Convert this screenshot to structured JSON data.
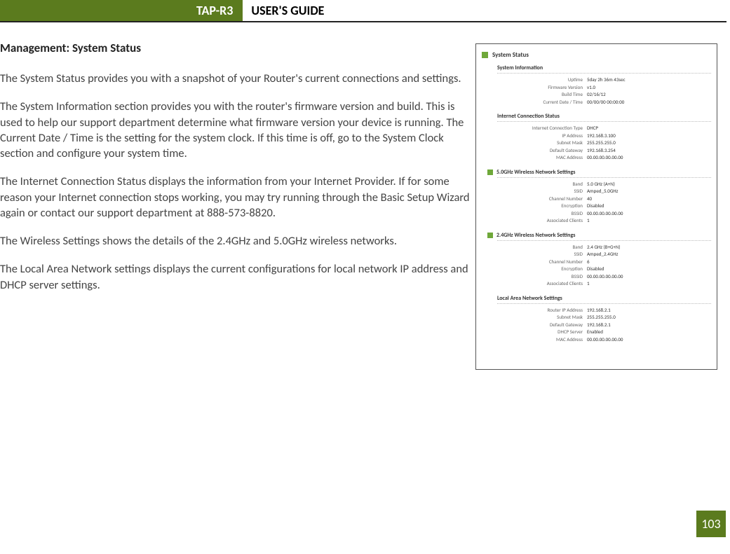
{
  "header": {
    "product": "TAP-R3",
    "title": "USER'S GUIDE"
  },
  "section_heading": "Management: System Status",
  "paragraphs": {
    "p1": "The System Status provides you with a snapshot of your Router's current connections and settings.",
    "p2": "The System Information section provides you with the router's firmware version and build.  This is used to help our support department determine what firmware version your device is running.  The Current Date / Time is the setting for the system clock.  If this time is off, go to the System Clock section and configure your system time.",
    "p3": "The Internet Connection Status displays the information from your Internet Provider.  If for some reason your Internet connection stops working, you may try running through the Basic Setup Wizard again or contact our support department at 888-573-8820.",
    "p4": "The Wireless Settings shows the details of the 2.4GHz and 5.0GHz wireless networks.",
    "p5": "The Local Area Network settings displays the current configurations for local network IP address and DHCP server settings."
  },
  "screenshot": {
    "title": "System Status",
    "sys_info": {
      "heading": "System Information",
      "uptime_l": "Uptime",
      "uptime_v": "5day 2h 36m 43sec",
      "fw_l": "Firmware Version",
      "fw_v": "v1.0",
      "bt_l": "Build Time",
      "bt_v": "02/16/12",
      "dt_l": "Current Date / Time",
      "dt_v": "00/00/00 00:00:00"
    },
    "inet": {
      "heading": "Internet Connection Status",
      "type_l": "Internet Connection Type",
      "type_v": "DHCP",
      "ip_l": "IP Address",
      "ip_v": "192.168.3.100",
      "mask_l": "Subnet Mask",
      "mask_v": "255.255.255.0",
      "gw_l": "Default Gateway",
      "gw_v": "192.168.3.254",
      "mac_l": "MAC Address",
      "mac_v": "00.00.00.00.00.00"
    },
    "w5": {
      "heading": "5.0GHz Wireless Network Settings",
      "band_l": "Band",
      "band_v": "5.0 GHz (A+N)",
      "ssid_l": "SSID",
      "ssid_v": "Amped_5.0GHz",
      "ch_l": "Channel Number",
      "ch_v": "40",
      "enc_l": "Encryption",
      "enc_v": "Disabled",
      "bssid_l": "BSSID",
      "bssid_v": "00.00.00.00.00.00",
      "cl_l": "Associated Clients",
      "cl_v": "1"
    },
    "w24": {
      "heading": "2.4GHz Wireless Network Settings",
      "band_l": "Band",
      "band_v": "2.4 GHz (B+G+N)",
      "ssid_l": "SSID",
      "ssid_v": "Amped_2.4GHz",
      "ch_l": "Channel Number",
      "ch_v": "6",
      "enc_l": "Encryption",
      "enc_v": "Disabled",
      "bssid_l": "BSSID",
      "bssid_v": "00.00.00.00.00.00",
      "cl_l": "Associated Clients",
      "cl_v": "1"
    },
    "lan": {
      "heading": "Local Area Network Settings",
      "ip_l": "Router IP Address",
      "ip_v": "192.168.2.1",
      "mask_l": "Subnet Mask",
      "mask_v": "255.255.255.0",
      "gw_l": "Default Gateway",
      "gw_v": "192.168.2.1",
      "dhcp_l": "DHCP Server",
      "dhcp_v": "Enabled",
      "mac_l": "MAC Address",
      "mac_v": "00.00.00.00.00.00"
    }
  },
  "page_number": "103",
  "colors": {
    "accent": "#5b7b1e"
  }
}
